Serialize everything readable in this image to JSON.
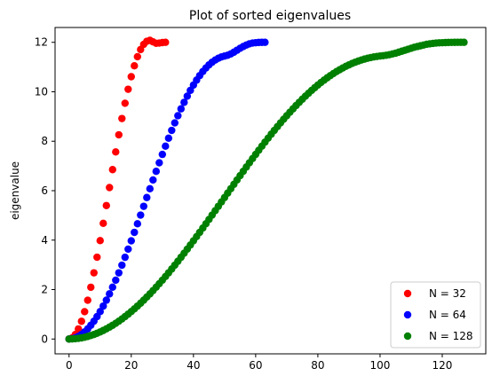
{
  "chart_data": {
    "type": "scatter",
    "title": "Plot of sorted eigenvalues",
    "xlabel": "",
    "ylabel": "eigenvalue",
    "xlim": [
      -4.5,
      134
    ],
    "ylim": [
      -0.6,
      12.6
    ],
    "x_ticks": [
      0,
      20,
      40,
      60,
      80,
      100,
      120
    ],
    "y_ticks": [
      0,
      2,
      4,
      6,
      8,
      10,
      12
    ],
    "x_tick_labels": [
      "0",
      "20",
      "40",
      "60",
      "80",
      "100",
      "120"
    ],
    "y_tick_labels": [
      "0",
      "2",
      "4",
      "6",
      "8",
      "10",
      "12"
    ],
    "grid": false,
    "legend_placement": "bottom-right",
    "series": [
      {
        "name": "N = 32",
        "color": "#ff0000",
        "x": [
          0,
          1,
          2,
          3,
          4,
          5,
          6,
          7,
          8,
          9,
          10,
          11,
          12,
          13,
          14,
          15,
          16,
          17,
          18,
          19,
          20,
          21,
          22,
          23,
          24,
          25,
          26,
          27,
          28,
          29,
          30,
          31
        ],
        "values": [
          0,
          0.046,
          0.183,
          0.408,
          0.717,
          1.106,
          1.567,
          2.094,
          2.677,
          3.309,
          3.98,
          4.679,
          5.398,
          6.126,
          6.852,
          7.567,
          8.259,
          8.918,
          9.536,
          10.102,
          10.609,
          11.05,
          11.418,
          11.708,
          11.917,
          12.042,
          12.08,
          12.02,
          11.96,
          11.97,
          11.99,
          12.0
        ]
      },
      {
        "name": "N = 64",
        "color": "#0000ff",
        "x": [
          0,
          1,
          2,
          3,
          4,
          5,
          6,
          7,
          8,
          9,
          10,
          11,
          12,
          13,
          14,
          15,
          16,
          17,
          18,
          19,
          20,
          21,
          22,
          23,
          24,
          25,
          26,
          27,
          28,
          29,
          30,
          31,
          32,
          33,
          34,
          35,
          36,
          37,
          38,
          39,
          40,
          41,
          42,
          43,
          44,
          45,
          46,
          47,
          48,
          49,
          50,
          51,
          52,
          53,
          54,
          55,
          56,
          57,
          58,
          59,
          60,
          61,
          62,
          63
        ],
        "values": [
          0,
          0.012,
          0.046,
          0.104,
          0.184,
          0.287,
          0.411,
          0.556,
          0.721,
          0.906,
          1.11,
          1.332,
          1.571,
          1.826,
          2.096,
          2.38,
          2.677,
          2.986,
          3.305,
          3.634,
          3.97,
          4.313,
          4.661,
          5.013,
          5.367,
          5.723,
          6.078,
          6.432,
          6.782,
          7.128,
          7.467,
          7.8,
          8.124,
          8.438,
          8.741,
          9.032,
          9.31,
          9.573,
          9.822,
          10.055,
          10.272,
          10.471,
          10.653,
          10.817,
          10.962,
          11.088,
          11.196,
          11.285,
          11.356,
          11.409,
          11.445,
          11.477,
          11.53,
          11.6,
          11.68,
          11.76,
          11.83,
          11.89,
          11.94,
          11.97,
          11.985,
          11.995,
          11.999,
          12.0
        ]
      },
      {
        "name": "N = 128",
        "color": "#008000",
        "x": [
          0,
          1,
          2,
          3,
          4,
          5,
          6,
          7,
          8,
          9,
          10,
          11,
          12,
          13,
          14,
          15,
          16,
          17,
          18,
          19,
          20,
          21,
          22,
          23,
          24,
          25,
          26,
          27,
          28,
          29,
          30,
          31,
          32,
          33,
          34,
          35,
          36,
          37,
          38,
          39,
          40,
          41,
          42,
          43,
          44,
          45,
          46,
          47,
          48,
          49,
          50,
          51,
          52,
          53,
          54,
          55,
          56,
          57,
          58,
          59,
          60,
          61,
          62,
          63,
          64,
          65,
          66,
          67,
          68,
          69,
          70,
          71,
          72,
          73,
          74,
          75,
          76,
          77,
          78,
          79,
          80,
          81,
          82,
          83,
          84,
          85,
          86,
          87,
          88,
          89,
          90,
          91,
          92,
          93,
          94,
          95,
          96,
          97,
          98,
          99,
          100,
          101,
          102,
          103,
          104,
          105,
          106,
          107,
          108,
          109,
          110,
          111,
          112,
          113,
          114,
          115,
          116,
          117,
          118,
          119,
          120,
          121,
          122,
          123,
          124,
          125,
          126,
          127
        ],
        "values": [
          0,
          0.003,
          0.012,
          0.026,
          0.046,
          0.072,
          0.104,
          0.141,
          0.184,
          0.233,
          0.287,
          0.346,
          0.411,
          0.481,
          0.556,
          0.636,
          0.721,
          0.811,
          0.906,
          1.006,
          1.11,
          1.219,
          1.332,
          1.449,
          1.571,
          1.697,
          1.826,
          1.959,
          2.096,
          2.237,
          2.38,
          2.527,
          2.677,
          2.83,
          2.986,
          3.144,
          3.305,
          3.468,
          3.634,
          3.801,
          3.97,
          4.141,
          4.313,
          4.486,
          4.661,
          4.837,
          5.013,
          5.19,
          5.367,
          5.545,
          5.723,
          5.901,
          6.078,
          6.256,
          6.432,
          6.607,
          6.782,
          6.956,
          7.128,
          7.298,
          7.467,
          7.635,
          7.8,
          7.963,
          8.124,
          8.282,
          8.438,
          8.591,
          8.741,
          8.889,
          9.032,
          9.173,
          9.31,
          9.443,
          9.573,
          9.699,
          9.822,
          9.94,
          10.055,
          10.165,
          10.272,
          10.374,
          10.471,
          10.564,
          10.653,
          10.737,
          10.817,
          10.892,
          10.962,
          11.028,
          11.088,
          11.144,
          11.196,
          11.242,
          11.285,
          11.322,
          11.356,
          11.384,
          11.409,
          11.429,
          11.445,
          11.458,
          11.477,
          11.5,
          11.53,
          11.56,
          11.6,
          11.64,
          11.68,
          11.72,
          11.76,
          11.8,
          11.83,
          11.86,
          11.89,
          11.92,
          11.94,
          11.955,
          11.97,
          11.978,
          11.985,
          11.99,
          11.995,
          11.997,
          11.999,
          12.0,
          12.0,
          12.0
        ]
      }
    ]
  }
}
